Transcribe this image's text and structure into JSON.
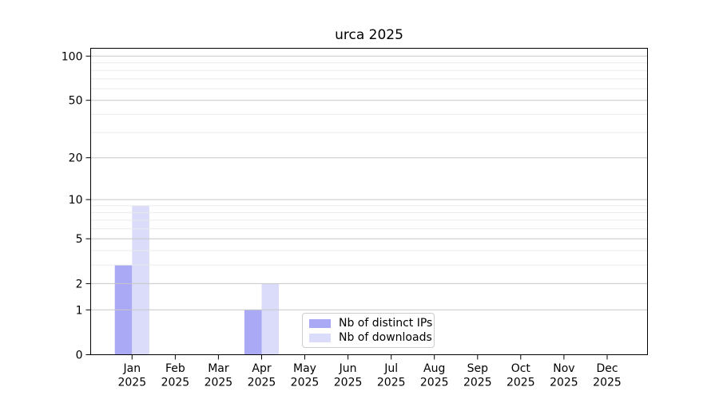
{
  "title": "urca 2025",
  "colors": {
    "ips": "#a9a9f6",
    "downloads": "#dbdbfa",
    "grid_major": "#c7c7c7",
    "grid_minor": "#ebebeb",
    "spine": "#000000",
    "text": "#000000",
    "legend_border": "#cccccc"
  },
  "legend": {
    "items": [
      {
        "label": "Nb of distinct IPs"
      },
      {
        "label": "Nb of downloads"
      }
    ]
  },
  "chart_data": {
    "type": "bar",
    "title": "urca 2025",
    "categories": [
      "Jan",
      "Feb",
      "Mar",
      "Apr",
      "May",
      "Jun",
      "Jul",
      "Aug",
      "Sep",
      "Oct",
      "Nov",
      "Dec"
    ],
    "x_tick_year": "2025",
    "series": [
      {
        "name": "Nb of distinct IPs",
        "color": "#a9a9f6",
        "values": [
          3,
          0,
          0,
          1,
          0,
          0,
          0,
          0,
          0,
          0,
          0,
          0
        ]
      },
      {
        "name": "Nb of downloads",
        "color": "#dbdbfa",
        "values": [
          9,
          0,
          0,
          2,
          0,
          0,
          0,
          0,
          0,
          0,
          0,
          0
        ]
      }
    ],
    "y_scale": "log10(1+v)",
    "y_ticks": [
      0,
      1,
      2,
      5,
      10,
      20,
      50,
      100
    ],
    "y_minor_gridlines": [
      3,
      4,
      6,
      7,
      8,
      9,
      30,
      40,
      60,
      70,
      80,
      90
    ],
    "ylim": [
      0,
      113
    ],
    "xlabel": "",
    "ylabel": "",
    "grid": "horizontal",
    "legend_position": "lower center"
  }
}
